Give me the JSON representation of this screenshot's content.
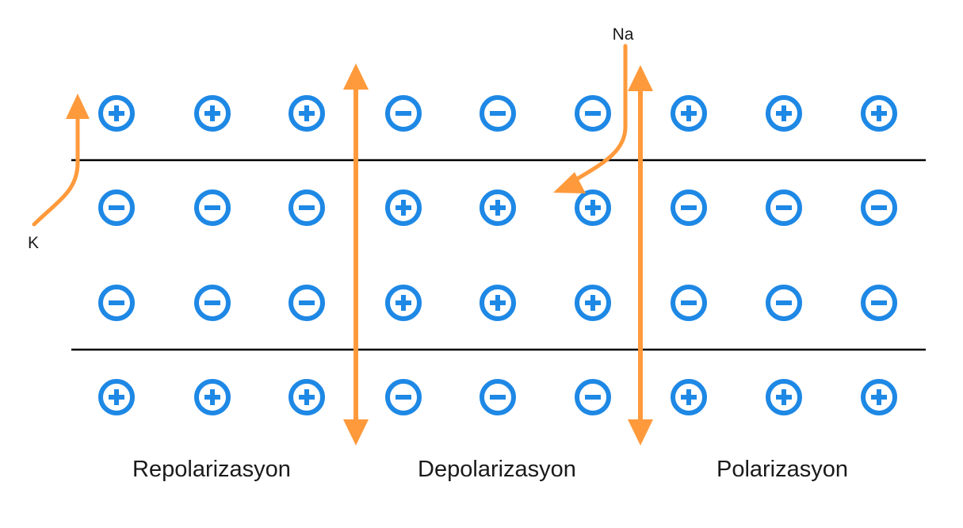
{
  "colors": {
    "charge": "#1e88e5",
    "arrow": "#ff9a3c",
    "membrane": "#000000",
    "text": "#1a1a1a"
  },
  "ions": {
    "potassium": "K",
    "sodium": "Na"
  },
  "regions": [
    {
      "label": "Repolarizasyon",
      "columns": 3
    },
    {
      "label": "Depolarizasyon",
      "columns": 3
    },
    {
      "label": "Polarizasyon",
      "columns": 3
    }
  ],
  "charges": [
    [
      "+",
      "+",
      "+",
      "-",
      "-",
      "-",
      "+",
      "+",
      "+"
    ],
    [
      "-",
      "-",
      "-",
      "+",
      "+",
      "+",
      "-",
      "-",
      "-"
    ],
    [
      "-",
      "-",
      "-",
      "+",
      "+",
      "+",
      "-",
      "-",
      "-"
    ],
    [
      "+",
      "+",
      "+",
      "-",
      "-",
      "-",
      "+",
      "+",
      "+"
    ]
  ]
}
